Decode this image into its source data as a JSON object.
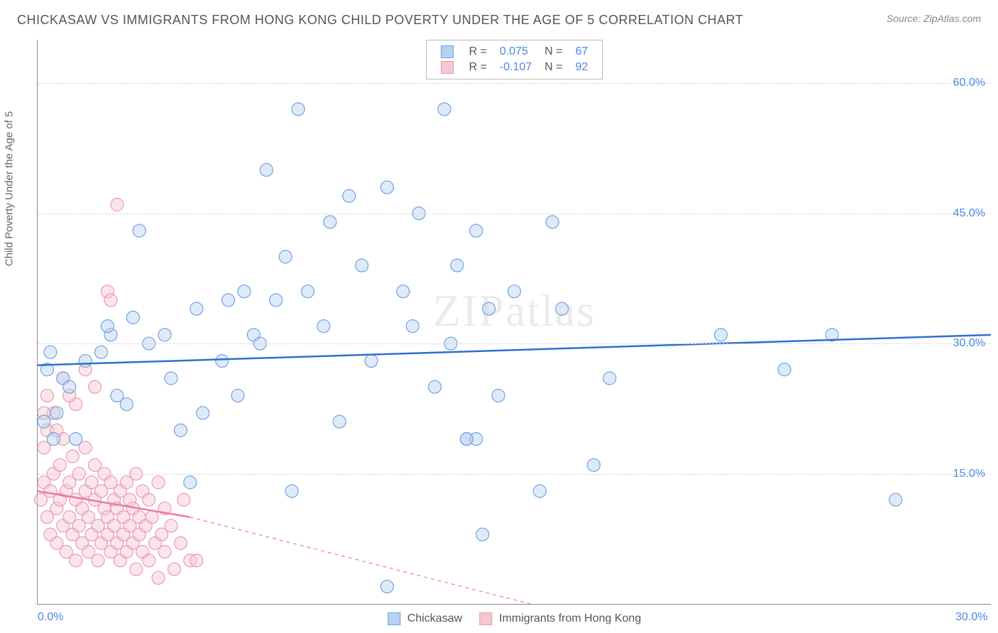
{
  "title": "CHICKASAW VS IMMIGRANTS FROM HONG KONG CHILD POVERTY UNDER THE AGE OF 5 CORRELATION CHART",
  "source_label": "Source: ZipAtlas.com",
  "watermark": "ZIPatlas",
  "ylabel": "Child Poverty Under the Age of 5",
  "chart": {
    "type": "scatter",
    "background_color": "#ffffff",
    "grid_color": "#d5d5d5",
    "axis_color": "#888888",
    "xlim": [
      0,
      30
    ],
    "ylim": [
      0,
      65
    ],
    "xticks": [
      {
        "v": 0,
        "label": "0.0%"
      },
      {
        "v": 30,
        "label": "30.0%"
      }
    ],
    "yticks": [
      {
        "v": 15,
        "label": "15.0%"
      },
      {
        "v": 30,
        "label": "30.0%"
      },
      {
        "v": 45,
        "label": "45.0%"
      },
      {
        "v": 60,
        "label": "60.0%"
      }
    ],
    "tick_color": "#4a86e8",
    "tick_fontsize": 16,
    "marker_radius": 9,
    "marker_opacity": 0.45,
    "line_width": 2.5,
    "series": [
      {
        "name": "Chickasaw",
        "color_fill": "#b7d1f1",
        "color_stroke": "#6fa3e0",
        "line_color": "#2f6fd0",
        "r_value": "0.075",
        "n_value": "67",
        "trend": {
          "x1": 0,
          "y1": 27.5,
          "x2": 30,
          "y2": 31.0,
          "dash": false,
          "extrapolate_dash": false
        },
        "points": [
          [
            0.2,
            21
          ],
          [
            0.3,
            27
          ],
          [
            0.4,
            29
          ],
          [
            0.6,
            22
          ],
          [
            0.8,
            26
          ],
          [
            1.0,
            25
          ],
          [
            1.2,
            19
          ],
          [
            1.5,
            28
          ],
          [
            2.0,
            29
          ],
          [
            2.3,
            31
          ],
          [
            2.5,
            24
          ],
          [
            2.8,
            23
          ],
          [
            3.0,
            33
          ],
          [
            3.2,
            43
          ],
          [
            3.5,
            30
          ],
          [
            4.0,
            31
          ],
          [
            4.2,
            26
          ],
          [
            4.5,
            20
          ],
          [
            5.0,
            34
          ],
          [
            5.2,
            22
          ],
          [
            5.8,
            28
          ],
          [
            6.0,
            35
          ],
          [
            6.3,
            24
          ],
          [
            6.8,
            31
          ],
          [
            7.0,
            30
          ],
          [
            7.2,
            50
          ],
          [
            7.5,
            35
          ],
          [
            7.8,
            40
          ],
          [
            8.0,
            13
          ],
          [
            8.2,
            57
          ],
          [
            8.5,
            36
          ],
          [
            9.0,
            32
          ],
          [
            9.2,
            44
          ],
          [
            9.5,
            21
          ],
          [
            9.8,
            47
          ],
          [
            10.2,
            39
          ],
          [
            10.5,
            28
          ],
          [
            11.0,
            48
          ],
          [
            11.5,
            36
          ],
          [
            11.8,
            32
          ],
          [
            12.0,
            45
          ],
          [
            12.5,
            25
          ],
          [
            12.8,
            57
          ],
          [
            13.0,
            30
          ],
          [
            13.2,
            39
          ],
          [
            13.5,
            19
          ],
          [
            13.8,
            43
          ],
          [
            14.0,
            8
          ],
          [
            14.2,
            34
          ],
          [
            14.5,
            24
          ],
          [
            15.0,
            36
          ],
          [
            11.0,
            2
          ],
          [
            13.8,
            19
          ],
          [
            15.8,
            13
          ],
          [
            16.2,
            44
          ],
          [
            16.5,
            34
          ],
          [
            17.5,
            16
          ],
          [
            18.0,
            26
          ],
          [
            21.5,
            31
          ],
          [
            23.5,
            27
          ],
          [
            25.0,
            31
          ],
          [
            27.0,
            12
          ],
          [
            13.5,
            19
          ],
          [
            6.5,
            36
          ],
          [
            4.8,
            14
          ],
          [
            2.2,
            32
          ],
          [
            0.5,
            19
          ]
        ]
      },
      {
        "name": "Immigants from Hong Kong",
        "label": "Immigrants from Hong Kong",
        "color_fill": "#f6c6d1",
        "color_stroke": "#ea9ab2",
        "line_color": "#ea7aa0",
        "r_value": "-0.107",
        "n_value": "92",
        "trend": {
          "x1": 0,
          "y1": 13.0,
          "x2": 4.8,
          "y2": 10.0,
          "dash": false,
          "extrapolate_x2": 15.5,
          "extrapolate_y2": 0,
          "extrapolate_dash": true
        },
        "points": [
          [
            0.1,
            12
          ],
          [
            0.2,
            18
          ],
          [
            0.2,
            14
          ],
          [
            0.3,
            20
          ],
          [
            0.3,
            10
          ],
          [
            0.4,
            13
          ],
          [
            0.4,
            8
          ],
          [
            0.5,
            15
          ],
          [
            0.5,
            22
          ],
          [
            0.6,
            11
          ],
          [
            0.6,
            7
          ],
          [
            0.7,
            16
          ],
          [
            0.7,
            12
          ],
          [
            0.8,
            9
          ],
          [
            0.8,
            19
          ],
          [
            0.9,
            13
          ],
          [
            0.9,
            6
          ],
          [
            1.0,
            14
          ],
          [
            1.0,
            10
          ],
          [
            1.1,
            8
          ],
          [
            1.1,
            17
          ],
          [
            1.2,
            12
          ],
          [
            1.2,
            5
          ],
          [
            1.3,
            15
          ],
          [
            1.3,
            9
          ],
          [
            1.4,
            11
          ],
          [
            1.4,
            7
          ],
          [
            1.5,
            13
          ],
          [
            1.5,
            18
          ],
          [
            1.6,
            10
          ],
          [
            1.6,
            6
          ],
          [
            1.7,
            14
          ],
          [
            1.7,
            8
          ],
          [
            1.8,
            12
          ],
          [
            1.8,
            16
          ],
          [
            1.9,
            9
          ],
          [
            1.9,
            5
          ],
          [
            2.0,
            13
          ],
          [
            2.0,
            7
          ],
          [
            2.1,
            11
          ],
          [
            2.1,
            15
          ],
          [
            2.2,
            8
          ],
          [
            2.2,
            10
          ],
          [
            2.3,
            6
          ],
          [
            2.3,
            14
          ],
          [
            2.4,
            9
          ],
          [
            2.4,
            12
          ],
          [
            2.5,
            7
          ],
          [
            2.5,
            11
          ],
          [
            2.6,
            13
          ],
          [
            2.6,
            5
          ],
          [
            2.7,
            10
          ],
          [
            2.7,
            8
          ],
          [
            2.8,
            14
          ],
          [
            2.8,
            6
          ],
          [
            2.9,
            9
          ],
          [
            2.9,
            12
          ],
          [
            3.0,
            7
          ],
          [
            3.0,
            11
          ],
          [
            3.1,
            15
          ],
          [
            3.1,
            4
          ],
          [
            3.2,
            10
          ],
          [
            3.2,
            8
          ],
          [
            3.3,
            13
          ],
          [
            3.3,
            6
          ],
          [
            3.4,
            9
          ],
          [
            3.5,
            12
          ],
          [
            3.5,
            5
          ],
          [
            3.6,
            10
          ],
          [
            3.7,
            7
          ],
          [
            3.8,
            14
          ],
          [
            3.8,
            3
          ],
          [
            3.9,
            8
          ],
          [
            4.0,
            11
          ],
          [
            4.0,
            6
          ],
          [
            4.2,
            9
          ],
          [
            4.3,
            4
          ],
          [
            4.5,
            7
          ],
          [
            4.6,
            12
          ],
          [
            4.8,
            5
          ],
          [
            0.3,
            24
          ],
          [
            0.8,
            26
          ],
          [
            1.2,
            23
          ],
          [
            1.8,
            25
          ],
          [
            0.2,
            22
          ],
          [
            2.2,
            36
          ],
          [
            2.3,
            35
          ],
          [
            2.5,
            46
          ],
          [
            1.0,
            24
          ],
          [
            0.6,
            20
          ],
          [
            1.5,
            27
          ],
          [
            5.0,
            5
          ]
        ]
      }
    ]
  },
  "legend_bottom": [
    {
      "swatch_fill": "#b7d1f1",
      "swatch_stroke": "#6fa3e0",
      "label": "Chickasaw"
    },
    {
      "swatch_fill": "#f6c6d1",
      "swatch_stroke": "#ea9ab2",
      "label": "Immigrants from Hong Kong"
    }
  ],
  "legend_top": {
    "label_color": "#555555",
    "value_color": "#4a86e8",
    "rows": [
      {
        "swatch_fill": "#b7d1f1",
        "swatch_stroke": "#6fa3e0",
        "r": "0.075",
        "n": "67"
      },
      {
        "swatch_fill": "#f6c6d1",
        "swatch_stroke": "#ea9ab2",
        "r": "-0.107",
        "n": "92"
      }
    ],
    "r_prefix": "R =",
    "n_prefix": "N ="
  }
}
